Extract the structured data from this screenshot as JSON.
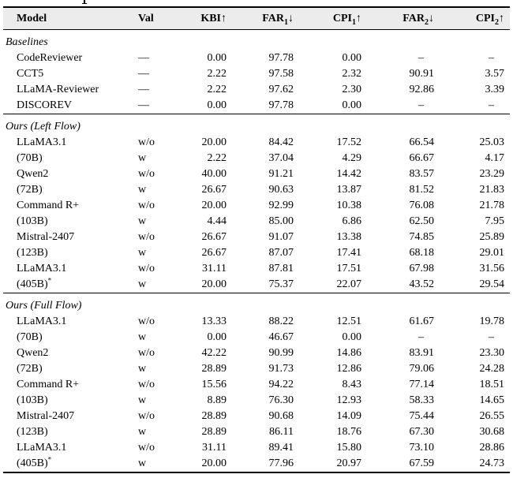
{
  "colors": {
    "header_bg": "#ececec",
    "rule": "#000000",
    "text": "#000000"
  },
  "table": {
    "columns": [
      {
        "label": "Model",
        "sub": "",
        "arrow": ""
      },
      {
        "label": "Val",
        "sub": "",
        "arrow": ""
      },
      {
        "label": "KBI",
        "sub": "",
        "arrow": "↑"
      },
      {
        "label": "FAR",
        "sub": "1",
        "arrow": "↓"
      },
      {
        "label": "CPI",
        "sub": "1",
        "arrow": "↑"
      },
      {
        "label": "FAR",
        "sub": "2",
        "arrow": "↓"
      },
      {
        "label": "CPI",
        "sub": "2",
        "arrow": "↑"
      }
    ],
    "sections": [
      {
        "title": "Baselines",
        "rows": [
          {
            "model": "CodeReviewer",
            "val": "—",
            "kbi": "0.00",
            "far1": "97.78",
            "cpi1": "0.00",
            "far2": "–",
            "cpi2": "–"
          },
          {
            "model": "CCT5",
            "val": "—",
            "kbi": "2.22",
            "far1": "97.58",
            "cpi1": "2.32",
            "far2": "90.91",
            "cpi2": "3.57"
          },
          {
            "model": "LLaMA-Reviewer",
            "val": "—",
            "kbi": "2.22",
            "far1": "97.62",
            "cpi1": "2.30",
            "far2": "92.86",
            "cpi2": "3.39"
          },
          {
            "model": "DISCOREV",
            "val": "—",
            "kbi": "0.00",
            "far1": "97.78",
            "cpi1": "0.00",
            "far2": "–",
            "cpi2": "–"
          }
        ]
      },
      {
        "title": "Ours (Left Flow)",
        "rows": [
          {
            "model": "LLaMA3.1",
            "val": "w/o",
            "kbi": "20.00",
            "far1": "84.42",
            "cpi1": "17.52",
            "far2": "66.54",
            "cpi2": "25.03"
          },
          {
            "model": "(70B)",
            "val": "w",
            "kbi": "2.22",
            "far1": "37.04",
            "cpi1": "4.29",
            "far2": "66.67",
            "cpi2": "4.17"
          },
          {
            "model": "Qwen2",
            "val": "w/o",
            "kbi": "40.00",
            "far1": "91.21",
            "cpi1": "14.42",
            "far2": "83.57",
            "cpi2": "23.29"
          },
          {
            "model": "(72B)",
            "val": "w",
            "kbi": "26.67",
            "far1": "90.63",
            "cpi1": "13.87",
            "far2": "81.52",
            "cpi2": "21.83"
          },
          {
            "model": "Command R+",
            "val": "w/o",
            "kbi": "20.00",
            "far1": "92.99",
            "cpi1": "10.38",
            "far2": "76.08",
            "cpi2": "21.78"
          },
          {
            "model": "(103B)",
            "val": "w",
            "kbi": "4.44",
            "far1": "85.00",
            "cpi1": "6.86",
            "far2": "62.50",
            "cpi2": "7.95"
          },
          {
            "model": "Mistral-2407",
            "val": "w/o",
            "kbi": "26.67",
            "far1": "91.07",
            "cpi1": "13.38",
            "far2": "74.85",
            "cpi2": "25.89"
          },
          {
            "model": "(123B)",
            "val": "w",
            "kbi": "26.67",
            "far1": "87.07",
            "cpi1": "17.41",
            "far2": "68.18",
            "cpi2": "29.01"
          },
          {
            "model": "LLaMA3.1",
            "val": "w/o",
            "kbi": "31.11",
            "far1": "87.81",
            "cpi1": "17.51",
            "far2": "67.98",
            "cpi2": "31.56"
          },
          {
            "model": "(405B)",
            "sup": "*",
            "val": "w",
            "kbi": "20.00",
            "far1": "75.37",
            "cpi1": "22.07",
            "far2": "43.52",
            "cpi2": "29.54"
          }
        ]
      },
      {
        "title": "Ours (Full Flow)",
        "rows": [
          {
            "model": "LLaMA3.1",
            "val": "w/o",
            "kbi": "13.33",
            "far1": "88.22",
            "cpi1": "12.51",
            "far2": "61.67",
            "cpi2": "19.78"
          },
          {
            "model": "(70B)",
            "val": "w",
            "kbi": "0.00",
            "far1": "46.67",
            "cpi1": "0.00",
            "far2": "–",
            "cpi2": "–"
          },
          {
            "model": "Qwen2",
            "val": "w/o",
            "kbi": "42.22",
            "far1": "90.99",
            "cpi1": "14.86",
            "far2": "83.91",
            "cpi2": "23.30"
          },
          {
            "model": "(72B)",
            "val": "w",
            "kbi": "28.89",
            "far1": "91.73",
            "cpi1": "12.86",
            "far2": "79.06",
            "cpi2": "24.28"
          },
          {
            "model": "Command R+",
            "val": "w/o",
            "kbi": "15.56",
            "far1": "94.22",
            "cpi1": "8.43",
            "far2": "77.14",
            "cpi2": "18.51"
          },
          {
            "model": "(103B)",
            "val": "w",
            "kbi": "8.89",
            "far1": "76.30",
            "cpi1": "12.93",
            "far2": "58.33",
            "cpi2": "14.65"
          },
          {
            "model": "Mistral-2407",
            "val": "w/o",
            "kbi": "28.89",
            "far1": "90.68",
            "cpi1": "14.09",
            "far2": "75.44",
            "cpi2": "26.55"
          },
          {
            "model": "(123B)",
            "val": "w",
            "kbi": "28.89",
            "far1": "86.11",
            "cpi1": "18.76",
            "far2": "67.30",
            "cpi2": "30.68"
          },
          {
            "model": "LLaMA3.1",
            "val": "w/o",
            "kbi": "31.11",
            "far1": "89.41",
            "cpi1": "15.80",
            "far2": "73.10",
            "cpi2": "28.86"
          },
          {
            "model": "(405B)",
            "sup": "*",
            "val": "w",
            "kbi": "20.00",
            "far1": "77.96",
            "cpi1": "20.97",
            "far2": "67.59",
            "cpi2": "24.73"
          }
        ]
      }
    ]
  }
}
